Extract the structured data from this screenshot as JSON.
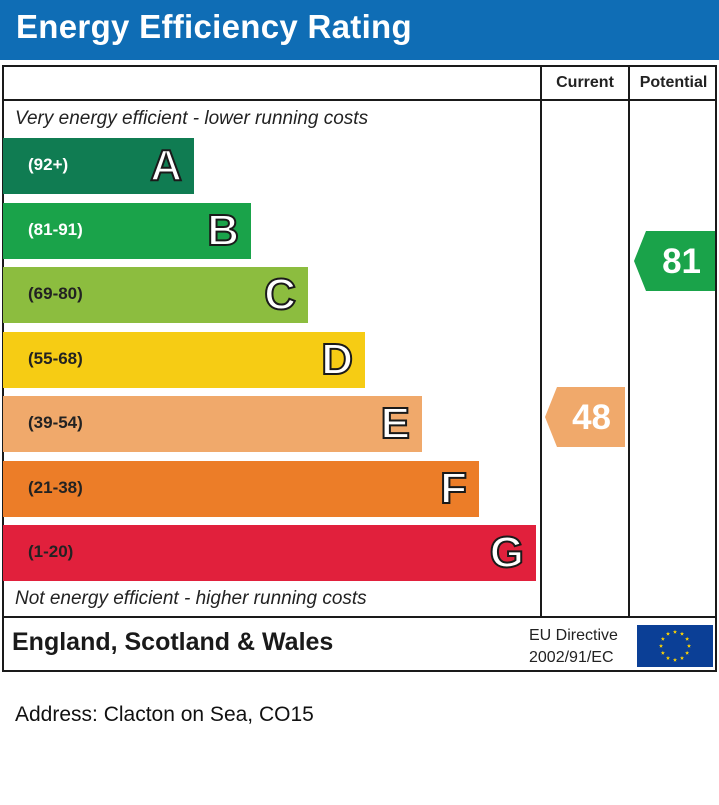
{
  "header": {
    "title": "Energy Efficiency Rating",
    "color": "#0f6db5"
  },
  "columns": {
    "current": "Current",
    "potential": "Potential"
  },
  "captions": {
    "top": "Very energy efficient - lower running costs",
    "bottom": "Not energy efficient - higher running costs"
  },
  "bands": [
    {
      "range": "(92+)",
      "letter": "A",
      "color": "#107c52"
    },
    {
      "range": "(81-91)",
      "letter": "B",
      "color": "#1aa34a"
    },
    {
      "range": "(69-80)",
      "letter": "C",
      "color": "#8cbd3f"
    },
    {
      "range": "(55-68)",
      "letter": "D",
      "color": "#f6cc14"
    },
    {
      "range": "(39-54)",
      "letter": "E",
      "color": "#f0a96b"
    },
    {
      "range": "(21-38)",
      "letter": "F",
      "color": "#ec7d28"
    },
    {
      "range": "(1-20)",
      "letter": "G",
      "color": "#e1203c"
    }
  ],
  "current_rating": {
    "value": "48",
    "band": "E",
    "color": "#f0a96b"
  },
  "potential_rating": {
    "value": "81",
    "band": "B",
    "color": "#1aa34a"
  },
  "footer": {
    "region": "England, Scotland & Wales",
    "directive_line1": "EU Directive",
    "directive_line2": "2002/91/EC",
    "flag_icon": "eu-flag-icon"
  },
  "address": "Address: Clacton on Sea, CO15"
}
